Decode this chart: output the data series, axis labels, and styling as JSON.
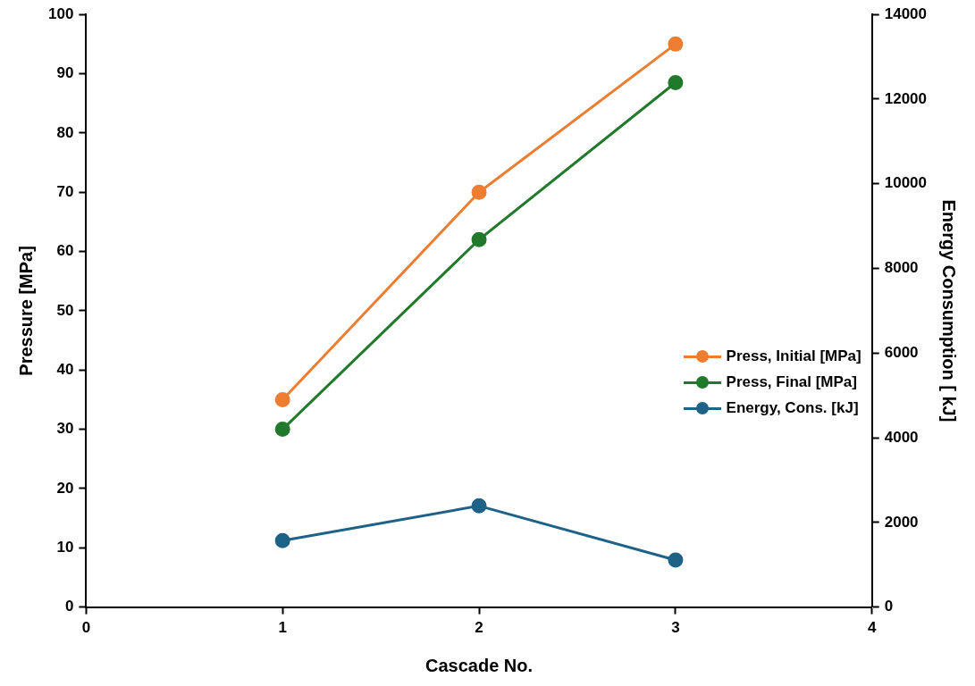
{
  "chart_data": {
    "type": "line",
    "xlabel": "Cascade No.",
    "ylabel": "Pressure [MPa]",
    "y2label": "Energy Consumption [ kJ]",
    "x": [
      1,
      2,
      3
    ],
    "xlim": [
      0,
      4
    ],
    "xticks": [
      0,
      1,
      2,
      3,
      4
    ],
    "ylim": [
      0,
      100
    ],
    "yticks": [
      0,
      10,
      20,
      30,
      40,
      50,
      60,
      70,
      80,
      90,
      100
    ],
    "y2lim": [
      0,
      14000
    ],
    "y2ticks": [
      0,
      2000,
      4000,
      6000,
      8000,
      10000,
      12000,
      14000
    ],
    "series": [
      {
        "name": "Press, Initial [MPa]",
        "color": "#ed7d31",
        "values": [
          35,
          70,
          95
        ]
      },
      {
        "name": "Press, Final [MPa]",
        "color": "#217a2b",
        "values": [
          30,
          62,
          88.5
        ]
      },
      {
        "name": "Energy, Cons. [kJ]",
        "color": "#1f6287",
        "values": [
          1570,
          2390,
          1110
        ],
        "axis": "y2"
      }
    ],
    "grid": false,
    "legend": "right",
    "marker": "circle",
    "line_style": "solid"
  }
}
